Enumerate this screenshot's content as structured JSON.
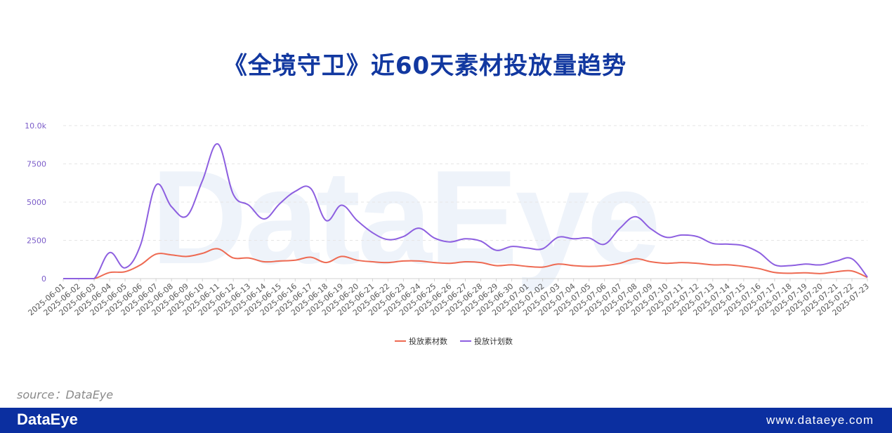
{
  "title": "《全境守卫》近60天素材投放量趋势",
  "watermark": "DataEye",
  "source": "source：DataEye",
  "footer": {
    "logo": "DataEye",
    "url": "www.dataeye.com"
  },
  "colors": {
    "series1": "#ee6a52",
    "series2": "#8d5fe0",
    "axis_label": "#7b5cc9",
    "brand": "#0b2fa0"
  },
  "chart_data": {
    "type": "line",
    "smooth": true,
    "grid": "horizontal-dashed",
    "legend_position": "bottom-center",
    "ylim": [
      0,
      10000
    ],
    "y_ticks": [
      0,
      2500,
      5000,
      7500,
      10000
    ],
    "y_tick_labels": [
      "0",
      "2500",
      "5000",
      "7500",
      "10.0k"
    ],
    "x": [
      "2025-06-01",
      "2025-06-02",
      "2025-06-03",
      "2025-06-04",
      "2025-06-05",
      "2025-06-06",
      "2025-06-07",
      "2025-06-08",
      "2025-06-09",
      "2025-06-10",
      "2025-06-11",
      "2025-06-12",
      "2025-06-13",
      "2025-06-14",
      "2025-06-15",
      "2025-06-16",
      "2025-06-17",
      "2025-06-18",
      "2025-06-19",
      "2025-06-20",
      "2025-06-21",
      "2025-06-22",
      "2025-06-23",
      "2025-06-24",
      "2025-06-25",
      "2025-06-26",
      "2025-06-27",
      "2025-06-28",
      "2025-06-29",
      "2025-06-30",
      "2025-07-01",
      "2025-07-02",
      "2025-07-03",
      "2025-07-04",
      "2025-07-05",
      "2025-07-06",
      "2025-07-07",
      "2025-07-08",
      "2025-07-09",
      "2025-07-10",
      "2025-07-11",
      "2025-07-12",
      "2025-07-13",
      "2025-07-14",
      "2025-07-15",
      "2025-07-16",
      "2025-07-17",
      "2025-07-18",
      "2025-07-19",
      "2025-07-20",
      "2025-07-21",
      "2025-07-22",
      "2025-07-23"
    ],
    "series": [
      {
        "name": "投放素材数",
        "color": "#ee6a52",
        "values": [
          0,
          0,
          0,
          400,
          450,
          900,
          1600,
          1550,
          1450,
          1650,
          1950,
          1350,
          1350,
          1100,
          1150,
          1200,
          1400,
          1050,
          1450,
          1200,
          1100,
          1050,
          1150,
          1150,
          1050,
          1000,
          1100,
          1050,
          850,
          900,
          800,
          750,
          950,
          850,
          800,
          850,
          1000,
          1300,
          1100,
          1000,
          1050,
          1000,
          900,
          900,
          800,
          650,
          400,
          350,
          380,
          330,
          450,
          500,
          80
        ]
      },
      {
        "name": "投放计划数",
        "color": "#8d5fe0",
        "values": [
          0,
          0,
          0,
          1700,
          700,
          2200,
          6100,
          4700,
          4100,
          6400,
          8800,
          5500,
          4800,
          3900,
          4900,
          5700,
          5900,
          3800,
          4800,
          3800,
          3000,
          2550,
          2750,
          3300,
          2650,
          2400,
          2600,
          2450,
          1850,
          2100,
          2000,
          1950,
          2700,
          2600,
          2650,
          2250,
          3300,
          4050,
          3250,
          2700,
          2850,
          2750,
          2300,
          2250,
          2150,
          1700,
          900,
          850,
          950,
          900,
          1150,
          1300,
          100
        ]
      }
    ]
  }
}
